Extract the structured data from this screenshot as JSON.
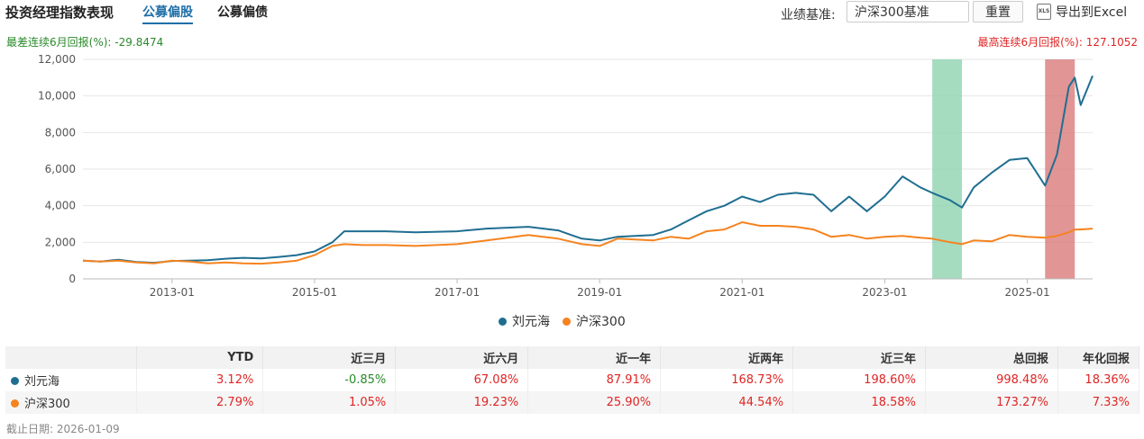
{
  "header": {
    "title": "投资经理指数表现",
    "tabs": [
      {
        "label": "公募偏股",
        "active": true
      },
      {
        "label": "公募偏债",
        "active": false
      }
    ],
    "benchmark_label": "业绩基准:",
    "benchmark_value": "沪深300基准",
    "reset_label": "重置",
    "export_icon_text": "XLS",
    "export_label": "导出到Excel"
  },
  "summary": {
    "worst_label": "最差连续6月回报(%):",
    "worst_value": "-29.8474",
    "best_label": "最高连续6月回报(%):",
    "best_value": "127.1052"
  },
  "colors": {
    "manager": "#1f6e91",
    "index": "#f5831f",
    "worst_band": "#8fd3b0",
    "best_band": "#d97b7b",
    "positive": "#e02424",
    "negative": "#2a8a2a"
  },
  "chart_data": {
    "type": "line",
    "x_axis": "date",
    "x_ticks": [
      "2013-01",
      "2015-01",
      "2017-01",
      "2019-01",
      "2021-01",
      "2023-01",
      "2025-01"
    ],
    "xlim": [
      "2011-10",
      "2025-12"
    ],
    "ylim": [
      0,
      12000
    ],
    "y_ticks": [
      "0",
      "2,000",
      "4,000",
      "6,000",
      "8,000",
      "10,000",
      "12,000"
    ],
    "grid": "horizontal",
    "legend_position": "bottom-center",
    "shaded_periods": [
      {
        "kind": "worst_6m",
        "start": "2023-09",
        "end": "2024-02"
      },
      {
        "kind": "best_6m",
        "start": "2025-04",
        "end": "2025-09"
      }
    ],
    "series": [
      {
        "name": "刘元海",
        "color": "#1f6e91",
        "points": [
          [
            "2011-10",
            1000
          ],
          [
            "2012-01",
            950
          ],
          [
            "2012-04",
            1050
          ],
          [
            "2012-07",
            920
          ],
          [
            "2012-10",
            880
          ],
          [
            "2013-01",
            980
          ],
          [
            "2013-04",
            1000
          ],
          [
            "2013-07",
            1020
          ],
          [
            "2013-10",
            1100
          ],
          [
            "2014-01",
            1150
          ],
          [
            "2014-04",
            1120
          ],
          [
            "2014-07",
            1200
          ],
          [
            "2014-10",
            1300
          ],
          [
            "2015-01",
            1500
          ],
          [
            "2015-04",
            2000
          ],
          [
            "2015-06",
            2600
          ],
          [
            "2015-09",
            2600
          ],
          [
            "2016-01",
            2600
          ],
          [
            "2016-06",
            2550
          ],
          [
            "2017-01",
            2600
          ],
          [
            "2017-06",
            2750
          ],
          [
            "2018-01",
            2850
          ],
          [
            "2018-06",
            2650
          ],
          [
            "2018-10",
            2200
          ],
          [
            "2019-01",
            2100
          ],
          [
            "2019-04",
            2300
          ],
          [
            "2019-10",
            2400
          ],
          [
            "2020-01",
            2700
          ],
          [
            "2020-04",
            3200
          ],
          [
            "2020-07",
            3700
          ],
          [
            "2020-10",
            4000
          ],
          [
            "2021-01",
            4500
          ],
          [
            "2021-04",
            4200
          ],
          [
            "2021-07",
            4600
          ],
          [
            "2021-10",
            4700
          ],
          [
            "2022-01",
            4600
          ],
          [
            "2022-04",
            3700
          ],
          [
            "2022-07",
            4500
          ],
          [
            "2022-10",
            3700
          ],
          [
            "2023-01",
            4500
          ],
          [
            "2023-04",
            5600
          ],
          [
            "2023-07",
            5000
          ],
          [
            "2023-09",
            4700
          ],
          [
            "2023-12",
            4300
          ],
          [
            "2024-02",
            3900
          ],
          [
            "2024-04",
            5000
          ],
          [
            "2024-07",
            5800
          ],
          [
            "2024-10",
            6500
          ],
          [
            "2025-01",
            6600
          ],
          [
            "2025-04",
            5100
          ],
          [
            "2025-06",
            6800
          ],
          [
            "2025-08",
            10500
          ],
          [
            "2025-09",
            11000
          ],
          [
            "2025-10",
            9500
          ],
          [
            "2025-12",
            11100
          ]
        ]
      },
      {
        "name": "沪深300",
        "color": "#f5831f",
        "points": [
          [
            "2011-10",
            1000
          ],
          [
            "2012-01",
            950
          ],
          [
            "2012-04",
            1000
          ],
          [
            "2012-07",
            900
          ],
          [
            "2012-10",
            850
          ],
          [
            "2013-01",
            1000
          ],
          [
            "2013-04",
            950
          ],
          [
            "2013-07",
            850
          ],
          [
            "2013-10",
            900
          ],
          [
            "2014-01",
            850
          ],
          [
            "2014-04",
            830
          ],
          [
            "2014-07",
            900
          ],
          [
            "2014-10",
            1000
          ],
          [
            "2015-01",
            1300
          ],
          [
            "2015-04",
            1800
          ],
          [
            "2015-06",
            1900
          ],
          [
            "2015-09",
            1850
          ],
          [
            "2016-01",
            1850
          ],
          [
            "2016-06",
            1800
          ],
          [
            "2017-01",
            1900
          ],
          [
            "2017-06",
            2100
          ],
          [
            "2018-01",
            2400
          ],
          [
            "2018-06",
            2200
          ],
          [
            "2018-10",
            1900
          ],
          [
            "2019-01",
            1800
          ],
          [
            "2019-04",
            2200
          ],
          [
            "2019-10",
            2100
          ],
          [
            "2020-01",
            2300
          ],
          [
            "2020-04",
            2200
          ],
          [
            "2020-07",
            2600
          ],
          [
            "2020-10",
            2700
          ],
          [
            "2021-01",
            3100
          ],
          [
            "2021-04",
            2900
          ],
          [
            "2021-07",
            2900
          ],
          [
            "2021-10",
            2850
          ],
          [
            "2022-01",
            2700
          ],
          [
            "2022-04",
            2300
          ],
          [
            "2022-07",
            2400
          ],
          [
            "2022-10",
            2200
          ],
          [
            "2023-01",
            2300
          ],
          [
            "2023-04",
            2350
          ],
          [
            "2023-07",
            2250
          ],
          [
            "2023-09",
            2200
          ],
          [
            "2023-12",
            2000
          ],
          [
            "2024-02",
            1900
          ],
          [
            "2024-04",
            2100
          ],
          [
            "2024-07",
            2050
          ],
          [
            "2024-10",
            2400
          ],
          [
            "2025-01",
            2300
          ],
          [
            "2025-04",
            2250
          ],
          [
            "2025-06",
            2350
          ],
          [
            "2025-08",
            2550
          ],
          [
            "2025-09",
            2700
          ],
          [
            "2025-10",
            2700
          ],
          [
            "2025-12",
            2750
          ]
        ]
      }
    ]
  },
  "table": {
    "columns": [
      "",
      "YTD",
      "近三月",
      "近六月",
      "近一年",
      "近两年",
      "近三年",
      "总回报",
      "年化回报"
    ],
    "rows": [
      {
        "name": "刘元海",
        "color": "#1f6e91",
        "values": [
          "3.12%",
          "-0.85%",
          "67.08%",
          "87.91%",
          "168.73%",
          "198.60%",
          "998.48%",
          "18.36%"
        ]
      },
      {
        "name": "沪深300",
        "color": "#f5831f",
        "values": [
          "2.79%",
          "1.05%",
          "19.23%",
          "25.90%",
          "44.54%",
          "18.58%",
          "173.27%",
          "7.33%"
        ]
      }
    ]
  },
  "footer": {
    "date_label": "截止日期:",
    "date_value": "2026-01-09"
  }
}
